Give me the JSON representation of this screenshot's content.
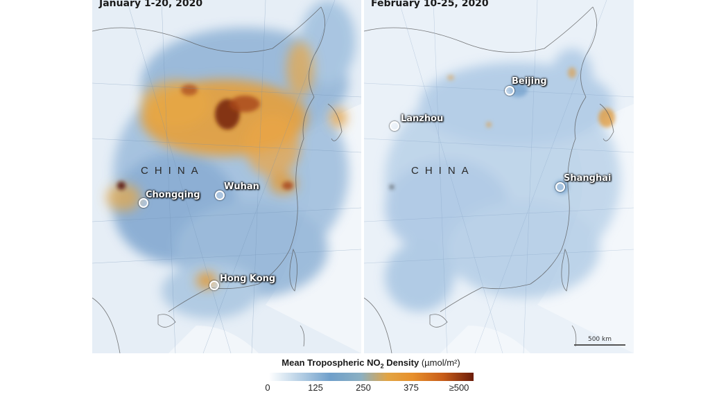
{
  "panels": [
    {
      "title": "January 1-20, 2020",
      "region_label": "CHINA",
      "cities": [
        "Chongqing",
        "Wuhan",
        "Hong Kong"
      ]
    },
    {
      "title": "February 10-25, 2020",
      "region_label": "CHINA",
      "cities": [
        "Beijing",
        "Lanzhou",
        "Shanghai"
      ]
    }
  ],
  "scale_bar": {
    "label": "500 km"
  },
  "legend": {
    "title_main": "Mean Tropospheric NO",
    "title_sub": "2",
    "title_rest": " Density ",
    "unit": "(µmol/m²)",
    "ticks": [
      "0",
      "125",
      "250",
      "375",
      "≥500"
    ],
    "colors": [
      "#ffffff",
      "#6f9fca",
      "#e2a443",
      "#c85d19",
      "#6b1c0a"
    ]
  }
}
